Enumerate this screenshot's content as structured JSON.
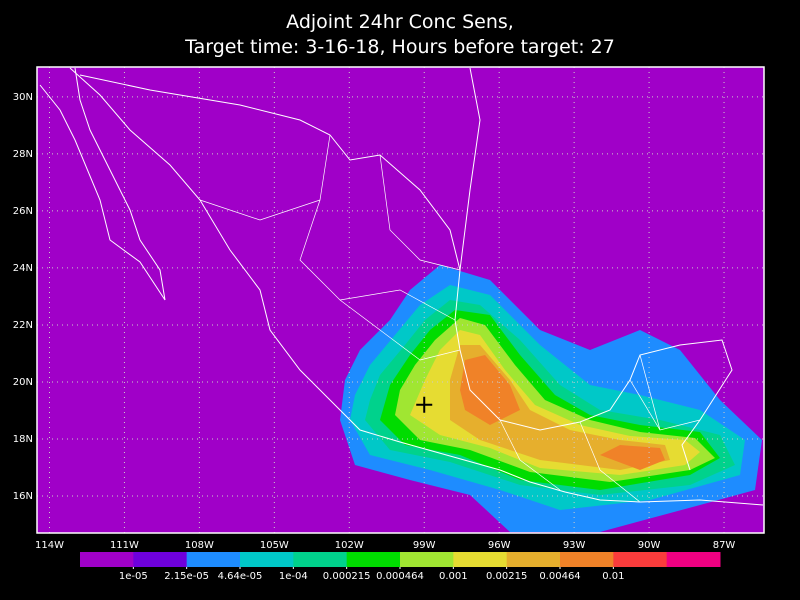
{
  "title": [
    "Adjoint 24hr Conc Sens,",
    "Target time: 3-16-18, Hours before target: 27"
  ],
  "map": {
    "lon_range": [
      -114.5,
      -85.4
    ],
    "lat_range": [
      14.7,
      31.05
    ],
    "lat_ticks": [
      {
        "value": 16,
        "label": "16N"
      },
      {
        "value": 18,
        "label": "18N"
      },
      {
        "value": 20,
        "label": "20N"
      },
      {
        "value": 22,
        "label": "22N"
      },
      {
        "value": 24,
        "label": "24N"
      },
      {
        "value": 26,
        "label": "26N"
      },
      {
        "value": 28,
        "label": "28N"
      },
      {
        "value": 30,
        "label": "30N"
      }
    ],
    "lon_ticks": [
      {
        "value": -114,
        "label": "114W"
      },
      {
        "value": -111,
        "label": "111W"
      },
      {
        "value": -108,
        "label": "108W"
      },
      {
        "value": -105,
        "label": "105W"
      },
      {
        "value": -102,
        "label": "102W"
      },
      {
        "value": -99,
        "label": "99W"
      },
      {
        "value": -96,
        "label": "96W"
      },
      {
        "value": -93,
        "label": "93W"
      },
      {
        "value": -90,
        "label": "90W"
      },
      {
        "value": -87,
        "label": "87W"
      }
    ],
    "marker": {
      "lon": -99,
      "lat": 19.2
    }
  },
  "colorbar": {
    "colors": [
      "#a000c8",
      "#6e00dc",
      "#1e8cff",
      "#00c8c8",
      "#00d28c",
      "#00dc00",
      "#a0e632",
      "#e6dc32",
      "#e6af2d",
      "#f08228",
      "#fa3c3c",
      "#f00082"
    ],
    "labels": [
      {
        "value": 1e-05,
        "label": "1e-05"
      },
      {
        "value": 2.15e-05,
        "label": "2.15e-05"
      },
      {
        "value": 4.64e-05,
        "label": "4.64e-05"
      },
      {
        "value": 0.0001,
        "label": "1e-04"
      },
      0.000215,
      0.000464,
      0.001,
      0.00215,
      0.00464,
      0.01
    ]
  }
}
